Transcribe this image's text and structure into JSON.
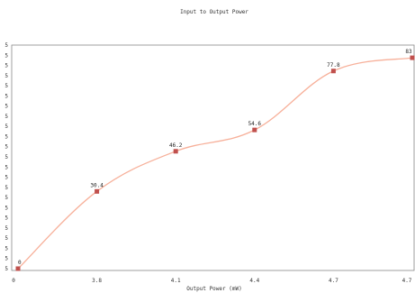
{
  "chart_data": {
    "type": "line",
    "title": "Input to Output Power",
    "xlabel": "Output Power (mW)",
    "ylabel": "",
    "categories": [
      "0",
      "3.8",
      "4.1",
      "4.4",
      "4.7",
      "4.7"
    ],
    "y_ticks": [
      "5",
      "5",
      "5",
      "5",
      "5",
      "5",
      "5",
      "5",
      "5",
      "5",
      "5",
      "5",
      "5",
      "5",
      "5",
      "5",
      "5",
      "5",
      "5",
      "5",
      "5",
      "5",
      "5"
    ],
    "ylim": [
      0,
      88
    ],
    "series": [
      {
        "values": [
          0,
          30.4,
          46.2,
          54.6,
          77.8,
          83
        ]
      }
    ],
    "data_labels": [
      "0",
      "30.4",
      "46.2",
      "54.6",
      "77.8",
      "83"
    ],
    "smooth": true,
    "grid": false,
    "colors": {
      "line": "#f7b09a",
      "marker": "#c0504d",
      "frame": "#888888"
    }
  }
}
